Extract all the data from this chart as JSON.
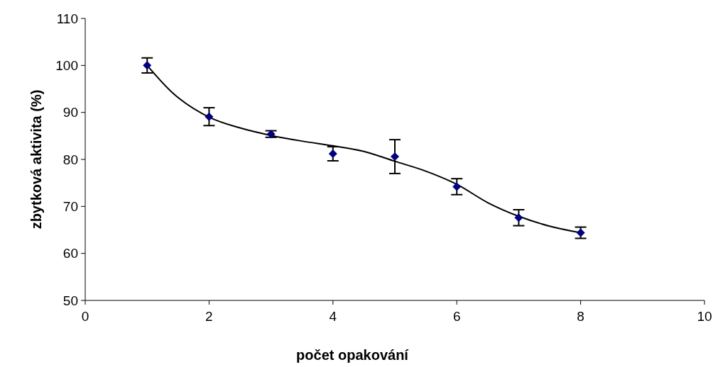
{
  "chart_data": {
    "type": "scatter",
    "xlabel": "počet opakování",
    "ylabel": "zbytková aktivita (%)",
    "xlim": [
      0,
      10
    ],
    "xticks": [
      0,
      2,
      4,
      6,
      8,
      10
    ],
    "ylim": [
      50,
      110
    ],
    "yticks": [
      50,
      60,
      70,
      80,
      90,
      100,
      110
    ],
    "grid": false,
    "series": [
      {
        "color": "#000080",
        "marker": "diamond",
        "x": [
          1,
          2,
          3,
          4,
          5,
          6,
          7,
          8
        ],
        "values": [
          100,
          89.1,
          85.4,
          81.2,
          80.6,
          74.2,
          67.6,
          64.4
        ],
        "errors": [
          1.6,
          1.9,
          0.7,
          1.5,
          3.6,
          1.7,
          1.7,
          1.2
        ]
      },
      {
        "type": "line",
        "color": "#000000",
        "marker": "none",
        "x": [
          1,
          1.4,
          2,
          2.5,
          3,
          3.5,
          4,
          4.5,
          5,
          5.5,
          6,
          6.5,
          7,
          7.5,
          8
        ],
        "values": [
          100,
          94.3,
          89,
          86.7,
          85.1,
          83.9,
          82.9,
          81.7,
          79.6,
          77.5,
          74.7,
          70.8,
          67.9,
          65.8,
          64.4
        ]
      }
    ]
  }
}
